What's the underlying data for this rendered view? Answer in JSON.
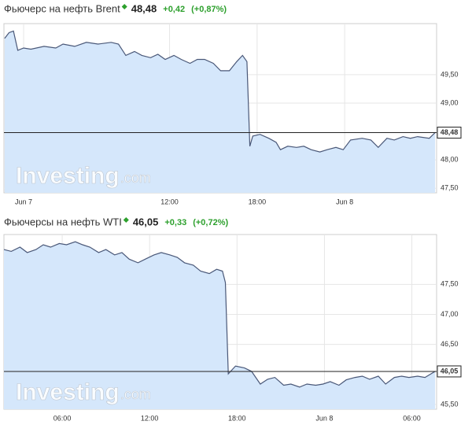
{
  "chart_data": [
    {
      "type": "area",
      "title": "Фьючерс на нефть Brent",
      "price": "48,48",
      "change": "+0,42",
      "change_pct": "(+0,87%)",
      "watermark": "Investing",
      "watermark_suffix": ".com",
      "line_color": "#4a5878",
      "fill_color": "#d5e7fb",
      "xlim": [
        0.65,
        30.3
      ],
      "ylim": [
        47.42,
        50.4
      ],
      "xticks": [
        {
          "value": 2,
          "label": "Jun 7"
        },
        {
          "value": 12,
          "label": "12:00"
        },
        {
          "value": 18,
          "label": "18:00"
        },
        {
          "value": 24,
          "label": "Jun 8"
        }
      ],
      "yticks": [
        {
          "value": 47.5,
          "label": "47,50"
        },
        {
          "value": 48,
          "label": "48,00"
        },
        {
          "value": 49,
          "label": "49,00"
        },
        {
          "value": 49.5,
          "label": "49,50"
        }
      ],
      "x": [
        0.7,
        1.0,
        1.3,
        1.6,
        2.0,
        2.5,
        3.4,
        4.2,
        4.7,
        5.5,
        6.3,
        7.1,
        8.0,
        8.5,
        9.0,
        9.6,
        10.1,
        10.7,
        11.2,
        11.7,
        12.3,
        12.8,
        13.4,
        13.9,
        14.4,
        15.0,
        15.5,
        16.1,
        16.6,
        17.0,
        17.3,
        17.5,
        17.7,
        18.2,
        18.8,
        19.3,
        19.6,
        20.1,
        20.7,
        21.2,
        21.7,
        22.3,
        22.8,
        23.4,
        23.9,
        24.4,
        25.2,
        25.8,
        26.3,
        26.9,
        27.4,
        28.0,
        28.5,
        29.0,
        29.8,
        30.2
      ],
      "values": [
        50.14,
        50.24,
        50.27,
        49.93,
        49.97,
        49.95,
        50.0,
        49.97,
        50.04,
        50.0,
        50.07,
        50.04,
        50.07,
        50.04,
        49.84,
        49.91,
        49.84,
        49.8,
        49.86,
        49.77,
        49.84,
        49.77,
        49.7,
        49.77,
        49.77,
        49.7,
        49.57,
        49.57,
        49.73,
        49.84,
        49.73,
        48.24,
        48.42,
        48.45,
        48.38,
        48.31,
        48.18,
        48.24,
        48.22,
        48.24,
        48.18,
        48.14,
        48.18,
        48.22,
        48.18,
        48.35,
        48.38,
        48.35,
        48.22,
        48.38,
        48.35,
        48.41,
        48.38,
        48.41,
        48.38,
        48.48
      ]
    },
    {
      "type": "area",
      "title": "Фьючерсы на нефть WTI",
      "price": "46,05",
      "change": "+0,33",
      "change_pct": "(+0,72%)",
      "watermark": "Investing",
      "watermark_suffix": ".com",
      "line_color": "#4a5878",
      "fill_color": "#d5e7fb",
      "xlim": [
        2,
        31.7
      ],
      "ylim": [
        45.42,
        48.33
      ],
      "xticks": [
        {
          "value": 6,
          "label": "06:00"
        },
        {
          "value": 12,
          "label": "12:00"
        },
        {
          "value": 18,
          "label": "18:00"
        },
        {
          "value": 24,
          "label": "Jun 8"
        },
        {
          "value": 30,
          "label": "06:00"
        }
      ],
      "yticks": [
        {
          "value": 45.5,
          "label": "45,50"
        },
        {
          "value": 46.5,
          "label": "46,50"
        },
        {
          "value": 47,
          "label": "47,00"
        },
        {
          "value": 47.5,
          "label": "47,50"
        }
      ],
      "x": [
        2.0,
        2.5,
        3.1,
        3.6,
        4.2,
        4.7,
        5.2,
        5.8,
        6.3,
        6.9,
        7.4,
        7.9,
        8.5,
        9.0,
        9.6,
        10.1,
        10.6,
        11.2,
        11.7,
        12.3,
        12.8,
        13.4,
        13.9,
        14.4,
        15.0,
        15.5,
        16.1,
        16.6,
        17.0,
        17.2,
        17.4,
        17.9,
        18.5,
        19.0,
        19.6,
        20.1,
        20.6,
        21.2,
        21.7,
        22.3,
        22.8,
        23.4,
        23.9,
        24.4,
        25.0,
        25.5,
        26.1,
        26.6,
        27.1,
        27.7,
        28.2,
        28.8,
        29.3,
        29.8,
        30.4,
        30.9,
        31.6
      ],
      "values": [
        48.08,
        48.05,
        48.12,
        48.03,
        48.08,
        48.16,
        48.12,
        48.18,
        48.16,
        48.21,
        48.16,
        48.12,
        48.03,
        48.08,
        47.99,
        48.03,
        47.92,
        47.86,
        47.92,
        47.99,
        48.03,
        47.99,
        47.95,
        47.86,
        47.82,
        47.72,
        47.68,
        47.75,
        47.72,
        47.53,
        46.01,
        46.14,
        46.11,
        46.05,
        45.84,
        45.92,
        45.95,
        45.82,
        45.84,
        45.79,
        45.84,
        45.82,
        45.84,
        45.88,
        45.82,
        45.91,
        45.95,
        45.97,
        45.92,
        45.97,
        45.84,
        45.95,
        45.97,
        45.95,
        45.97,
        45.95,
        46.05
      ]
    }
  ]
}
